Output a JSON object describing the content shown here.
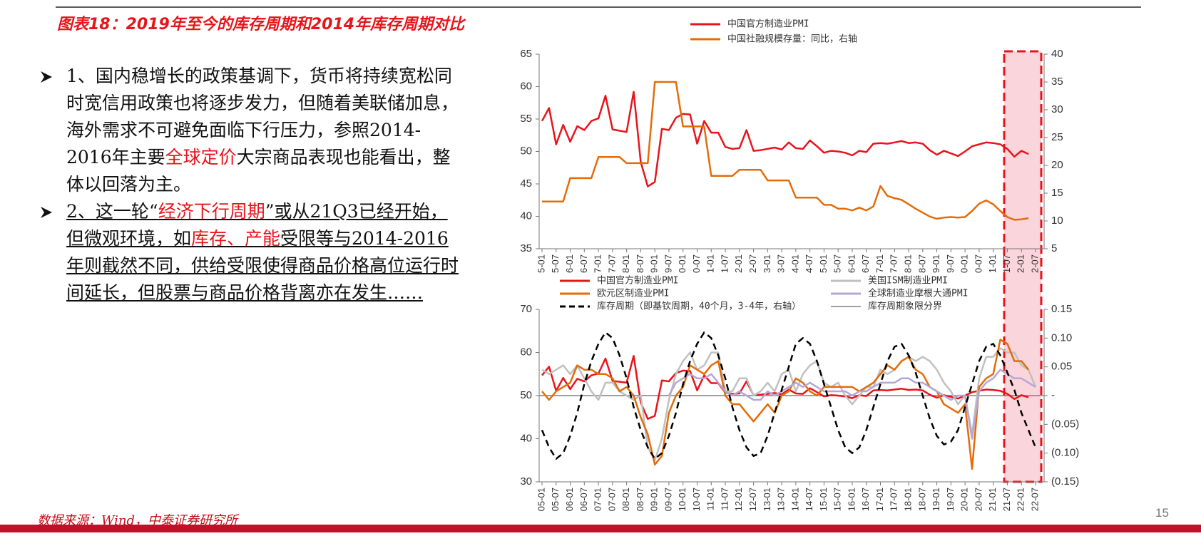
{
  "header": {
    "title": "图表18：2019年至今的库存周期和2014年库存周期对比"
  },
  "text": {
    "bullets": [
      {
        "underline": false,
        "segments": [
          {
            "text": "1、国内稳增长的政策基调下，货币将持续宽松同时宽信用政策也将逐步发力，但随着美联储加息，海外需求不可避免面临下行压力，参照2014-2016年主要",
            "highlight": false
          },
          {
            "text": "全球定价",
            "highlight": true
          },
          {
            "text": "大宗商品表现也能看出，整体以回落为主。",
            "highlight": false
          }
        ]
      },
      {
        "underline": true,
        "segments": [
          {
            "text": "2、这一轮“",
            "highlight": false
          },
          {
            "text": "经济下行周期",
            "highlight": true
          },
          {
            "text": "”或从21Q3已经开始，但微观环境，如",
            "highlight": false
          },
          {
            "text": "库存、产能",
            "highlight": true
          },
          {
            "text": "受限等与2014-2016年则截然不同，供给受限使得商品价格高位运行时间延长，但股票与商品价格背离亦在发生……",
            "highlight": false
          }
        ]
      }
    ]
  },
  "footer": {
    "source": "数据来源：Wind，中泰证券研究所",
    "page": "15"
  },
  "chart_data": [
    {
      "type": "line",
      "categories": [
        "5-01",
        null,
        "5-07",
        null,
        "6-01",
        null,
        "6-07",
        null,
        "7-01",
        null,
        "7-07",
        null,
        "8-01",
        null,
        "8-07",
        null,
        "9-01",
        null,
        "9-07",
        null,
        "0-01",
        null,
        "0-07",
        null,
        "1-01",
        null,
        "1-07",
        null,
        "2-01",
        null,
        "2-07",
        null,
        "3-01",
        null,
        "3-07",
        null,
        "4-01",
        null,
        "4-07",
        null,
        "5-01",
        null,
        "5-07",
        null,
        "6-01",
        null,
        "6-07",
        null,
        "7-01",
        null,
        "7-07",
        null,
        "8-01",
        null,
        "8-07",
        null,
        "9-01",
        null,
        "9-07",
        null,
        "0-01",
        null,
        "0-07",
        null,
        "1-01",
        null,
        "1-07",
        null,
        "2-01",
        null,
        "2-07"
      ],
      "ylim": [
        35,
        65
      ],
      "yticks": [
        35,
        40,
        45,
        50,
        55,
        60,
        65
      ],
      "y2lim": [
        5,
        40
      ],
      "y2ticks": [
        5,
        10,
        15,
        20,
        25,
        30,
        35,
        40
      ],
      "series": [
        {
          "name": "中国官方制造业PMI",
          "color": "#e8141b",
          "values": [
            54.7,
            56.7,
            51.1,
            54.1,
            51.5,
            53.9,
            53.3,
            54.7,
            55.1,
            58.6,
            53.4,
            53.2,
            53.0,
            59.2,
            48.4,
            44.6,
            45.3,
            53.5,
            53.3,
            55.2,
            55.8,
            55.7,
            51.2,
            54.7,
            52.9,
            52.9,
            50.7,
            50.4,
            50.5,
            53.3,
            50.1,
            50.2,
            50.4,
            50.6,
            50.3,
            51.4,
            50.5,
            50.4,
            51.7,
            50.8,
            49.8,
            50.1,
            50.0,
            49.8,
            49.4,
            50.1,
            49.9,
            51.2,
            51.3,
            51.2,
            51.4,
            51.6,
            51.3,
            51.4,
            51.2,
            50.2,
            49.5,
            50.1,
            49.7,
            49.3,
            50.0,
            50.8,
            51.1,
            51.4,
            51.3,
            51.1,
            50.4,
            49.2,
            50.1,
            49.6,
            null
          ]
        },
        {
          "name": "中国社融规模存量：同比，右轴",
          "color": "#e36c0a",
          "axis": "y2",
          "values": [
            13.5,
            13.5,
            13.5,
            13.5,
            17.7,
            17.7,
            17.7,
            17.7,
            21.5,
            21.5,
            21.5,
            21.5,
            20.4,
            20.4,
            20.4,
            20.4,
            35,
            35,
            35,
            35,
            27,
            27,
            27,
            27,
            18.1,
            18.1,
            18.1,
            18.1,
            19.2,
            19.2,
            19.2,
            19.2,
            17.3,
            17.3,
            17.3,
            17.3,
            14.2,
            14.2,
            14.2,
            14.2,
            12.9,
            12.9,
            12.2,
            12.2,
            11.9,
            12.4,
            11.9,
            12.6,
            16.3,
            14.5,
            14.1,
            13.8,
            13.0,
            12.2,
            11.5,
            10.8,
            10.4,
            10.6,
            10.7,
            10.6,
            10.7,
            11.8,
            13.1,
            13.7,
            13.0,
            11.8,
            10.7,
            10.2,
            10.3,
            10.5,
            null
          ]
        }
      ]
    },
    {
      "type": "line",
      "categories": [
        "05-01",
        null,
        "05-07",
        null,
        "06-01",
        null,
        "06-07",
        null,
        "07-01",
        null,
        "07-07",
        null,
        "08-01",
        null,
        "08-07",
        null,
        "09-01",
        null,
        "09-07",
        null,
        "10-01",
        null,
        "10-07",
        null,
        "11-01",
        null,
        "11-07",
        null,
        "12-01",
        null,
        "12-07",
        null,
        "13-01",
        null,
        "13-07",
        null,
        "14-01",
        null,
        "14-07",
        null,
        "15-01",
        null,
        "15-07",
        null,
        "16-01",
        null,
        "16-07",
        null,
        "17-01",
        null,
        "17-07",
        null,
        "18-01",
        null,
        "18-07",
        null,
        "19-01",
        null,
        "19-07",
        null,
        "20-01",
        null,
        "20-07",
        null,
        "21-01",
        null,
        "21-07",
        null,
        "22-01",
        null,
        "22-07"
      ],
      "ylim": [
        30,
        70
      ],
      "yticks": [
        30,
        40,
        50,
        60,
        70
      ],
      "y2lim": [
        -0.15,
        0.15
      ],
      "y2ticks": [
        {
          "value": -0.15,
          "label": "(0.15)"
        },
        {
          "value": -0.1,
          "label": "(0.10)"
        },
        {
          "value": -0.05,
          "label": "(0.05)"
        },
        {
          "value": 0,
          "label": "-"
        },
        0.05,
        {
          "value": 0.1,
          "label": "0.10"
        },
        0.15
      ],
      "series": [
        {
          "name": "中国官方制造业PMI",
          "color": "#e8141b",
          "values": [
            54.7,
            56.7,
            51.1,
            54.1,
            51.5,
            53.9,
            53.3,
            54.7,
            55.1,
            58.6,
            53.4,
            53.2,
            53.0,
            59.2,
            48.4,
            44.6,
            45.3,
            53.5,
            53.3,
            55.2,
            55.8,
            55.7,
            51.2,
            54.7,
            52.9,
            52.9,
            50.7,
            50.4,
            50.5,
            53.3,
            50.1,
            50.2,
            50.4,
            50.6,
            50.3,
            51.4,
            50.5,
            50.4,
            51.7,
            50.8,
            49.8,
            50.1,
            50.0,
            49.8,
            49.4,
            50.1,
            49.9,
            51.2,
            51.3,
            51.2,
            51.4,
            51.6,
            51.3,
            51.4,
            51.2,
            50.2,
            49.5,
            50.1,
            49.7,
            49.3,
            50.0,
            50.8,
            51.1,
            51.4,
            51.3,
            51.1,
            50.4,
            49.2,
            50.1,
            49.6,
            null
          ]
        },
        {
          "name": "美国ISM制造业PMI",
          "color": "#c0c0c0",
          "values": [
            56,
            55,
            56,
            57,
            55,
            57,
            54,
            51,
            49,
            53,
            53,
            51,
            50,
            49,
            50,
            38,
            35,
            40,
            49,
            55,
            58,
            60,
            56,
            57,
            60,
            60,
            51,
            51,
            54,
            54,
            50,
            51,
            53,
            51,
            55,
            56,
            51,
            55,
            57,
            58,
            53,
            52,
            53,
            50,
            48,
            50,
            52,
            52,
            56,
            55,
            56,
            58,
            59,
            58,
            59,
            58,
            56,
            53,
            51,
            48,
            50,
            41,
            54,
            59,
            59,
            61,
            60,
            60,
            57,
            56,
            52
          ]
        },
        {
          "name": "欧元区制造业PMI",
          "color": "#e36c0a",
          "values": [
            51,
            49,
            51,
            52,
            53,
            57,
            56,
            56,
            55,
            55,
            54,
            51,
            52,
            50,
            45,
            41,
            34,
            36,
            46,
            50,
            52,
            57,
            56,
            55,
            57,
            58,
            50,
            48,
            48,
            46,
            44,
            46,
            48,
            46,
            50,
            51,
            54,
            53,
            51,
            50,
            52,
            52,
            52,
            52,
            52,
            51,
            52,
            53,
            55,
            57,
            56,
            58,
            59,
            56,
            55,
            52,
            51,
            48,
            47,
            46,
            48,
            33,
            52,
            54,
            55,
            63,
            62,
            58,
            58,
            56,
            null
          ]
        },
        {
          "name": "全球制造业摩根大通PMI",
          "color": "#b4a7d6",
          "values": [
            null,
            null,
            null,
            null,
            null,
            null,
            null,
            null,
            null,
            null,
            null,
            null,
            null,
            null,
            null,
            null,
            null,
            null,
            50,
            53,
            54,
            55,
            54,
            54,
            55,
            53,
            51,
            50,
            51,
            50,
            49,
            49,
            51,
            50,
            51,
            52,
            53,
            52,
            53,
            52,
            51,
            51,
            51,
            51,
            50,
            51,
            51,
            52,
            53,
            53,
            53,
            54,
            54,
            53,
            53,
            52,
            51,
            50,
            49,
            50,
            50,
            40,
            51,
            53,
            54,
            56,
            55,
            54,
            54,
            53,
            52
          ]
        },
        {
          "name": "库存周期（即基钦周期，40个月，3-4年，右轴）",
          "color": "#000000",
          "axis": "y2",
          "dash": true,
          "values": [
            -0.06,
            -0.09,
            -0.11,
            -0.1,
            -0.07,
            -0.03,
            0.02,
            0.06,
            0.09,
            0.11,
            0.1,
            0.07,
            0.03,
            -0.02,
            -0.06,
            -0.09,
            -0.11,
            -0.1,
            -0.07,
            -0.03,
            0.02,
            0.06,
            0.09,
            0.11,
            0.1,
            0.07,
            0.03,
            -0.02,
            -0.06,
            -0.09,
            -0.105,
            -0.1,
            -0.07,
            -0.03,
            0.01,
            0.05,
            0.09,
            0.1,
            0.09,
            0.06,
            0.02,
            -0.02,
            -0.06,
            -0.09,
            -0.1,
            -0.09,
            -0.06,
            -0.02,
            0.02,
            0.06,
            0.085,
            0.09,
            0.07,
            0.04,
            0,
            -0.04,
            -0.07,
            -0.085,
            -0.08,
            -0.06,
            -0.02,
            0.02,
            0.06,
            0.085,
            0.09,
            0.07,
            0.04,
            0.01,
            -0.03,
            -0.06,
            -0.09
          ]
        }
      ],
      "reference_line": {
        "name": "库存周期象限分界",
        "value": 50,
        "color": "#808080"
      }
    }
  ]
}
